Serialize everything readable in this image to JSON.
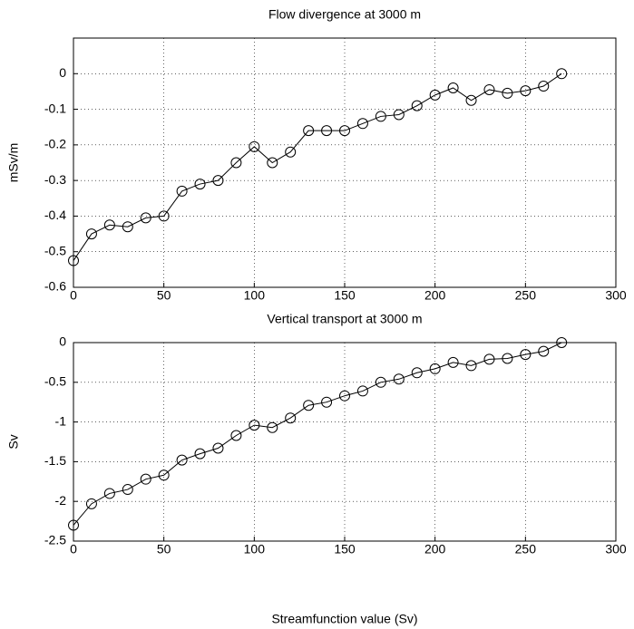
{
  "chart_data": [
    {
      "type": "line",
      "title": "Flow divergence at 3000 m",
      "ylabel": "mSv/m",
      "x": [
        0,
        10,
        20,
        30,
        40,
        50,
        60,
        70,
        80,
        90,
        100,
        110,
        120,
        130,
        140,
        150,
        160,
        170,
        180,
        190,
        200,
        210,
        220,
        230,
        240,
        250,
        260,
        270
      ],
      "values": [
        -0.525,
        -0.45,
        -0.425,
        -0.43,
        -0.405,
        -0.4,
        -0.33,
        -0.31,
        -0.3,
        -0.25,
        -0.205,
        -0.25,
        -0.22,
        -0.16,
        -0.16,
        -0.16,
        -0.14,
        -0.12,
        -0.115,
        -0.09,
        -0.06,
        -0.04,
        -0.075,
        -0.045,
        -0.055,
        -0.048,
        -0.035,
        0
      ],
      "color": "#000000",
      "marker": "circle",
      "xlim": [
        0,
        300
      ],
      "xticks": [
        0,
        50,
        100,
        150,
        200,
        250,
        300
      ],
      "ylim": [
        -0.6,
        0.1
      ],
      "yticks": [
        -0.6,
        -0.5,
        -0.4,
        -0.3,
        -0.2,
        -0.1,
        0
      ],
      "grid": true
    },
    {
      "type": "line",
      "title": "Vertical transport at 3000 m",
      "ylabel": "Sv",
      "xlabel": "Streamfunction value (Sv)",
      "x": [
        0,
        10,
        20,
        30,
        40,
        50,
        60,
        70,
        80,
        90,
        100,
        110,
        120,
        130,
        140,
        150,
        160,
        170,
        180,
        190,
        200,
        210,
        220,
        230,
        240,
        250,
        260,
        270
      ],
      "values": [
        -2.3,
        -2.03,
        -1.9,
        -1.85,
        -1.72,
        -1.67,
        -1.48,
        -1.4,
        -1.33,
        -1.17,
        -1.04,
        -1.07,
        -0.95,
        -0.79,
        -0.75,
        -0.67,
        -0.61,
        -0.5,
        -0.46,
        -0.38,
        -0.33,
        -0.25,
        -0.29,
        -0.21,
        -0.2,
        -0.15,
        -0.11,
        0
      ],
      "color": "#000000",
      "marker": "circle",
      "xlim": [
        0,
        300
      ],
      "xticks": [
        0,
        50,
        100,
        150,
        200,
        250,
        300
      ],
      "ylim": [
        -2.5,
        0
      ],
      "yticks": [
        -2.5,
        -2,
        -1.5,
        -1,
        -0.5,
        0
      ],
      "grid": true
    }
  ]
}
